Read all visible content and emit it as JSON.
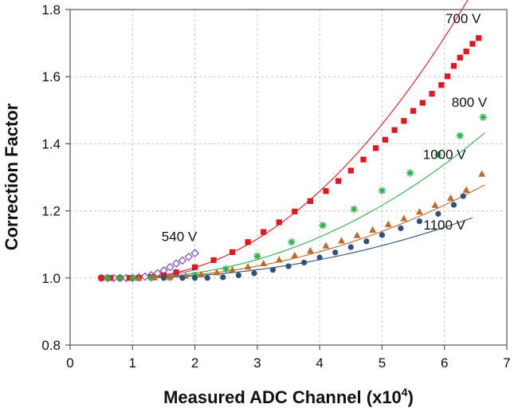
{
  "chart_data": {
    "type": "scatter",
    "title": "",
    "xlabel": "Measured ADC Channel (x10",
    "xlabel_exp": "4",
    "xlabel_close": ")",
    "ylabel": "Correction Factor",
    "xlim": [
      0,
      7
    ],
    "ylim": [
      0.8,
      1.8
    ],
    "xticks": [
      0,
      1,
      2,
      3,
      4,
      5,
      6,
      7
    ],
    "yticks": [
      0.8,
      1.0,
      1.2,
      1.4,
      1.6,
      1.8
    ],
    "xtick_labels": [
      "0",
      "1",
      "2",
      "3",
      "4",
      "5",
      "6",
      "7"
    ],
    "ytick_labels": [
      "0.8",
      "1.0",
      "1.2",
      "1.4",
      "1.6",
      "1.8"
    ],
    "grid": true,
    "series": [
      {
        "name": "540 V",
        "color": "#7e57c2",
        "marker": "diamond-open",
        "fit": [
          1.0,
          0.0,
          0.0,
          0.02,
          0.0,
          0.9,
          0.0
        ],
        "fit_range": [
          0.5,
          2.0
        ],
        "label_at": [
          1.75,
          1.11
        ],
        "x": [
          0.5,
          0.6,
          0.7,
          0.8,
          0.9,
          1.0,
          1.1,
          1.2,
          1.3,
          1.4,
          1.5,
          1.6,
          1.7,
          1.8,
          1.9,
          2.0
        ],
        "y": [
          1.0,
          1.0,
          1.0,
          1.0,
          1.0,
          1.0,
          1.002,
          1.004,
          1.008,
          1.014,
          1.022,
          1.032,
          1.043,
          1.052,
          1.063,
          1.074
        ]
      },
      {
        "name": "700 V",
        "color": "#e3161e",
        "marker": "square",
        "fit": [
          1.0,
          0.0,
          0.0,
          0.0254,
          0.0,
          0.9,
          0.0
        ],
        "fit_range": [
          0.5,
          6.55
        ],
        "label_at": [
          6.3,
          1.76
        ],
        "x": [
          0.5,
          0.65,
          0.8,
          0.95,
          1.1,
          1.3,
          1.5,
          1.7,
          2.0,
          2.3,
          2.6,
          2.85,
          3.1,
          3.35,
          3.6,
          3.85,
          4.1,
          4.3,
          4.5,
          4.7,
          4.9,
          5.05,
          5.2,
          5.35,
          5.5,
          5.65,
          5.8,
          5.95,
          6.05,
          6.15,
          6.25,
          6.35,
          6.45,
          6.55
        ],
        "y": [
          1.0,
          1.0,
          1.0,
          1.0,
          1.0,
          1.003,
          1.008,
          1.017,
          1.032,
          1.053,
          1.077,
          1.107,
          1.137,
          1.166,
          1.198,
          1.229,
          1.259,
          1.289,
          1.32,
          1.353,
          1.387,
          1.412,
          1.441,
          1.468,
          1.498,
          1.522,
          1.549,
          1.575,
          1.601,
          1.632,
          1.657,
          1.675,
          1.698,
          1.715
        ]
      },
      {
        "name": "800 V",
        "color": "#2db34a",
        "marker": "asterisk",
        "fit": [
          1.0,
          0.0,
          0.0,
          0.012,
          0.0,
          0.9,
          0.0
        ],
        "fit_range": [
          0.6,
          6.65
        ],
        "label_at": [
          6.4,
          1.51
        ],
        "x": [
          0.6,
          0.8,
          1.0,
          1.3,
          1.6,
          2.0,
          2.5,
          3.0,
          3.55,
          4.05,
          4.55,
          5.0,
          5.45,
          5.9,
          6.25,
          6.62
        ],
        "y": [
          1.0,
          1.0,
          1.0,
          1.0,
          1.001,
          1.008,
          1.027,
          1.065,
          1.107,
          1.157,
          1.205,
          1.26,
          1.313,
          1.367,
          1.424,
          1.479
        ]
      },
      {
        "name": "1000 V",
        "color": "#c06a28",
        "marker": "triangle",
        "fit": [
          1.0,
          0.0,
          0.0,
          0.0077,
          0.0,
          0.9,
          0.0
        ],
        "fit_range": [
          0.9,
          6.65
        ],
        "label_at": [
          6.0,
          1.355
        ],
        "x": [
          1.1,
          1.35,
          1.6,
          1.85,
          2.1,
          2.35,
          2.6,
          2.85,
          3.1,
          3.35,
          3.6,
          3.85,
          4.1,
          4.35,
          4.6,
          4.85,
          5.1,
          5.35,
          5.6,
          5.85,
          6.1,
          6.35,
          6.6
        ],
        "y": [
          1.0,
          1.001,
          1.003,
          1.006,
          1.01,
          1.016,
          1.024,
          1.033,
          1.043,
          1.054,
          1.067,
          1.081,
          1.096,
          1.111,
          1.127,
          1.143,
          1.16,
          1.177,
          1.197,
          1.217,
          1.238,
          1.262,
          1.31
        ]
      },
      {
        "name": "1100 V",
        "color": "#2f4f7f",
        "marker": "circle",
        "fit": [
          1.0,
          0.0,
          0.0,
          0.00535,
          0.0,
          0.9,
          0.0
        ],
        "fit_range": [
          1.4,
          6.45
        ],
        "label_at": [
          6.0,
          1.145
        ],
        "x": [
          1.5,
          1.8,
          2.0,
          2.2,
          2.45,
          2.7,
          2.95,
          3.25,
          3.5,
          3.75,
          4.0,
          4.25,
          4.5,
          4.75,
          5.0,
          5.3,
          5.6,
          5.9,
          6.15,
          6.3
        ],
        "y": [
          1.0,
          1.0,
          1.0,
          1.0,
          1.002,
          1.008,
          1.014,
          1.024,
          1.035,
          1.046,
          1.061,
          1.076,
          1.092,
          1.109,
          1.128,
          1.148,
          1.169,
          1.191,
          1.218,
          1.244
        ]
      }
    ]
  }
}
